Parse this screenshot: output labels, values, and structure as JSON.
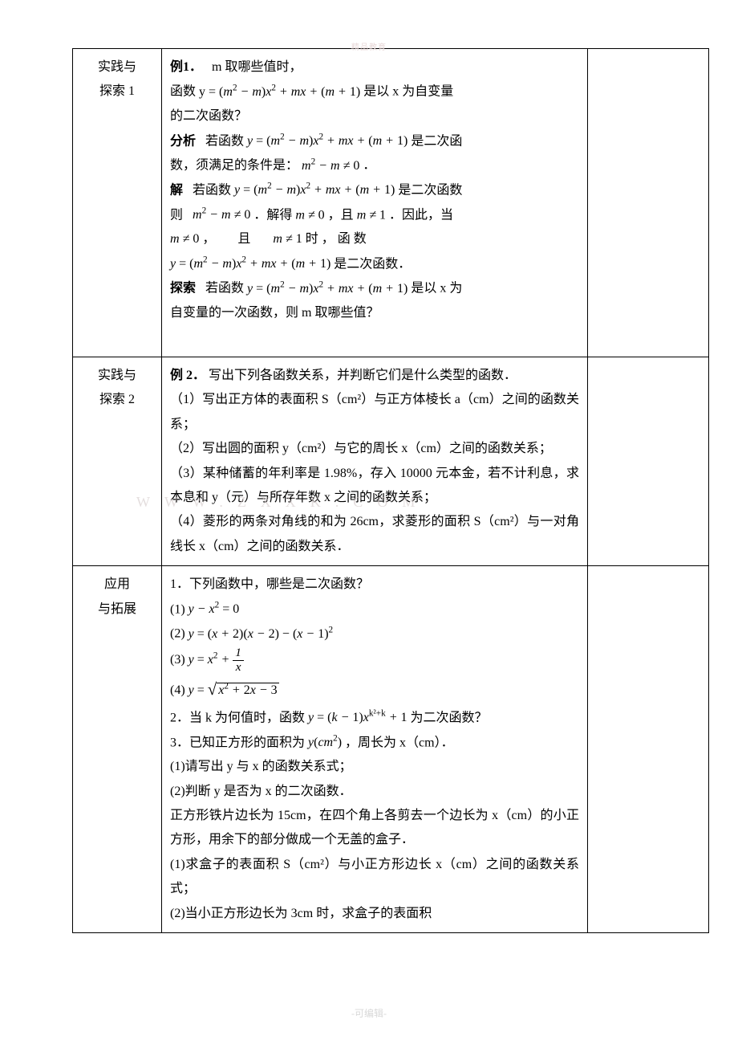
{
  "watermark_top": "精品教育",
  "watermark_bottom": "-可编辑-",
  "faint_wm": "WWW.ZXXK.COM",
  "rows": [
    {
      "label": "实践与\n探索 1",
      "content_key": "r1"
    },
    {
      "label": "实践与\n探索 2",
      "content_key": "r2"
    },
    {
      "label": "应用\n与拓展",
      "content_key": "r3"
    }
  ],
  "r1": {
    "ex_label": "例1．",
    "ex_text": "m 取哪些值时，",
    "line2a": "函数 ",
    "poly": "y = (m² − m)x² + mx + (m + 1)",
    "line2b": " 是以 x 为自变量",
    "line3": "的二次函数？",
    "analysis_label": "分析",
    "analysis_a": "若函数 ",
    "analysis_b": " 是二次函",
    "analysis_c": "数，须满足的条件是：",
    "cond": "m² − m ≠ 0",
    "period": "．",
    "solve_label": "解",
    "solve_a": "若函数 ",
    "solve_b": " 是二次函数",
    "then": "则",
    "solve_c": "．解得 ",
    "mne0": "m ≠ 0",
    "comma": "，且",
    "mne1": "m ≠ 1",
    "solve_d": "．因此，当",
    "solve_e": "且",
    "when": " 时 ， 函 数",
    "solve_f": " 是二次函数．",
    "explore_label": "探索",
    "explore_a": "若函数 ",
    "explore_b": " 是以 x 为",
    "explore_c": "自变量的一次函数，则 m 取哪些值？"
  },
  "r2": {
    "ex_label": "例 2．",
    "intro": "写出下列各函数关系，并判断它们是什么类型的函数．",
    "item1": "（1）写出正方体的表面积 S（cm²）与正方体棱长 a（cm）之间的函数关系；",
    "item2": "（2）写出圆的面积 y（cm²）与它的周长 x（cm）之间的函数关系；",
    "item3": "（3）某种储蓄的年利率是 1.98%，存入 10000 元本金，若不计利息，求本息和 y（元）与所存年数 x 之间的函数关系；",
    "item4": "（4）菱形的两条对角线的和为 26cm，求菱形的面积 S（cm²）与一对角线长 x（cm）之间的函数关系．"
  },
  "r3": {
    "q1": "1．下列函数中，哪些是二次函数？",
    "f1_label": "(1)  ",
    "f1": "y − x² = 0",
    "f2_label": "(2)  ",
    "f2": "y = (x + 2)(x − 2) − (x − 1)²",
    "f3_label": "(3)  ",
    "f3_pre": "y = x² + ",
    "f3_num": "1",
    "f3_den": "x",
    "f4_label": "(4)  ",
    "f4_pre": "y = ",
    "f4_body": "x² + 2x − 3",
    "q2a": "2．当 k 为何值时，函数 ",
    "q2_math": "y = (k − 1)x",
    "q2_exp": "k²+k",
    "q2b": " + 1 为二次函数？",
    "q3a": "3．已知正方形的面积为 ",
    "q3_math": "y(cm²)",
    "q3b": "，周长为 x（cm）．",
    "q3_1": "(1)请写出 y 与 x 的函数关系式；",
    "q3_2": "(2)判断 y 是否为 x 的二次函数．",
    "p1": "正方形铁片边长为 15cm，在四个角上各剪去一个边长为 x（cm）的小正方形，用余下的部分做成一个无盖的盒子．",
    "p1_1": "(1)求盒子的表面积 S（cm²）与小正方形边长 x（cm）之间的函数关系式；",
    "p1_2": "(2)当小正方形边长为 3cm 时，求盒子的表面积"
  }
}
